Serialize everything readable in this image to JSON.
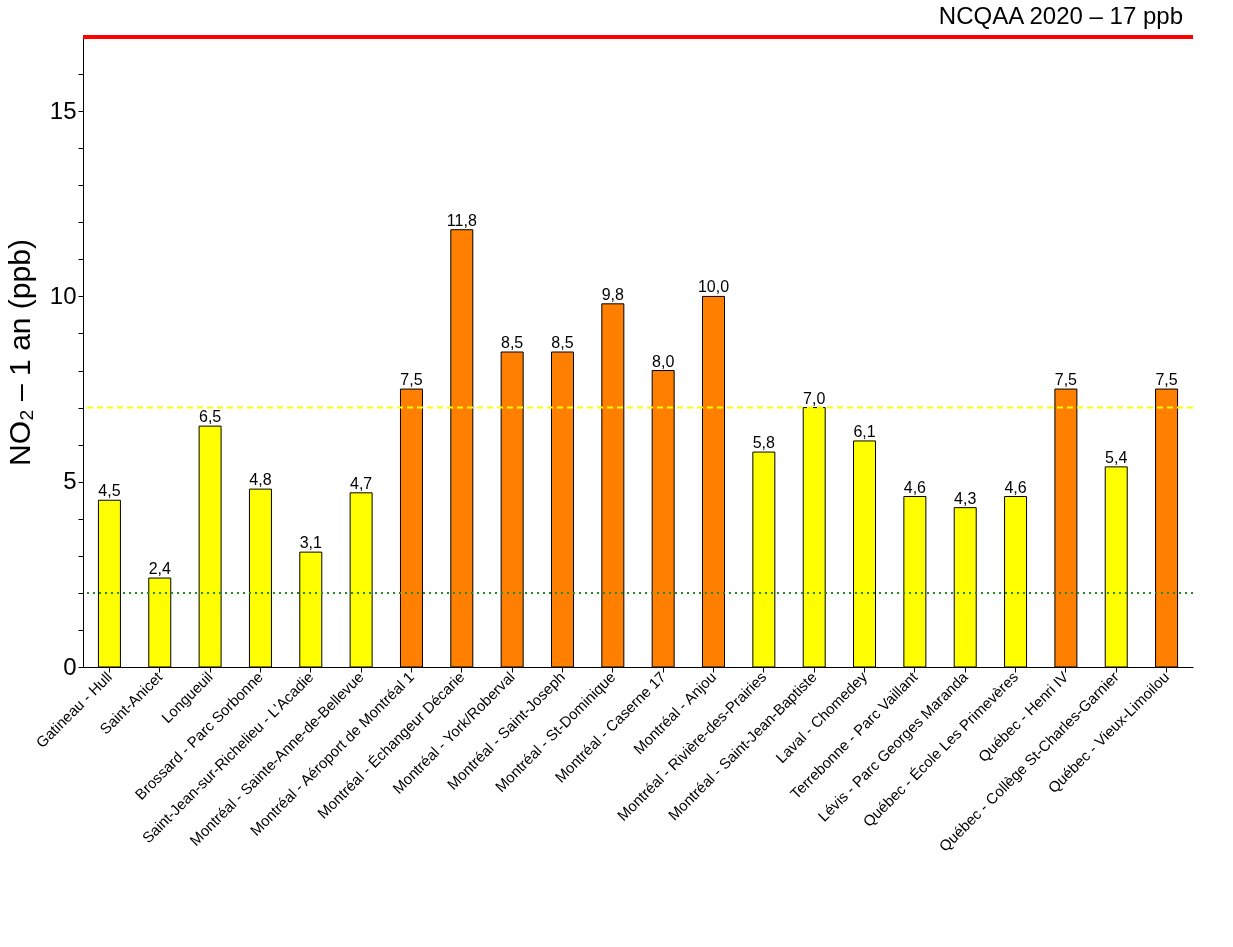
{
  "chart_data": {
    "type": "bar",
    "ylabel": "NO₂ – 1 an (ppb)",
    "categories": [
      "Gatineau - Hull",
      "Saint-Anicet",
      "Longueuil",
      "Brossard - Parc Sorbonne",
      "Saint-Jean-sur-Richelieu - L'Acadie",
      "Montréal - Sainte-Anne-de-Bellevue",
      "Montréal - Aéroport de Montréal 1",
      "Montréal - Échangeur Décarie",
      "Montréal - York/Roberval",
      "Montréal - Saint-Joseph",
      "Montréal - St-Dominique",
      "Montréal - Caserne 17",
      "Montréal - Anjou",
      "Montréal - Rivière-des-Prairies",
      "Montréal - Saint-Jean-Baptiste",
      "Laval - Chomedey",
      "Terrebonne - Parc Vaillant",
      "Lévis - Parc Georges Maranda",
      "Québec - École Les Primevères",
      "Québec - Henri IV",
      "Québec - Collège St-Charles-Garnier",
      "Québec - Vieux-Limoilou"
    ],
    "values": [
      4.5,
      2.4,
      6.5,
      4.8,
      3.1,
      4.7,
      7.5,
      11.8,
      8.5,
      8.5,
      9.8,
      8.0,
      10.0,
      5.8,
      7.0,
      6.1,
      4.6,
      4.3,
      4.6,
      7.5,
      5.4,
      7.5
    ],
    "value_labels": [
      "4,5",
      "2,4",
      "6,5",
      "4,8",
      "3,1",
      "4,7",
      "7,5",
      "11,8",
      "8,5",
      "8,5",
      "9,8",
      "8,0",
      "10,0",
      "5,8",
      "7,0",
      "6,1",
      "4,6",
      "4,3",
      "4,6",
      "7,5",
      "5,4",
      "7,5"
    ],
    "colors": [
      "#ffff00",
      "#ffff00",
      "#ffff00",
      "#ffff00",
      "#ffff00",
      "#ffff00",
      "#ff7f00",
      "#ff7f00",
      "#ff7f00",
      "#ff7f00",
      "#ff7f00",
      "#ff7f00",
      "#ff7f00",
      "#ffff00",
      "#ffff00",
      "#ffff00",
      "#ffff00",
      "#ffff00",
      "#ffff00",
      "#ff7f00",
      "#ffff00",
      "#ff7f00"
    ],
    "ylim": [
      0,
      17
    ],
    "yticks": [
      0,
      {
        "value": 1,
        "label": null
      },
      {
        "value": 2,
        "label": null
      },
      {
        "value": 3,
        "label": null
      },
      {
        "value": 4,
        "label": null
      },
      5,
      {
        "value": 6,
        "label": null
      },
      {
        "value": 7,
        "label": null
      },
      {
        "value": 8,
        "label": null
      },
      {
        "value": 9,
        "label": null
      },
      10,
      {
        "value": 11,
        "label": null
      },
      {
        "value": 12,
        "label": null
      },
      {
        "value": 13,
        "label": null
      },
      {
        "value": 14,
        "label": null
      },
      15,
      {
        "value": 16,
        "label": null
      }
    ],
    "ref_lines": [
      {
        "axis": "y",
        "value": 17,
        "label": "NCQAA 2020 – 17 ppb",
        "color": "#ff0000",
        "line_style": "solid"
      },
      {
        "axis": "y",
        "value": 7,
        "label": null,
        "color": "#ffff00",
        "line_style": "dashed"
      },
      {
        "axis": "y",
        "value": 2,
        "label": null,
        "color": "#228b22",
        "line_style": "dotted"
      }
    ],
    "grid": false
  }
}
